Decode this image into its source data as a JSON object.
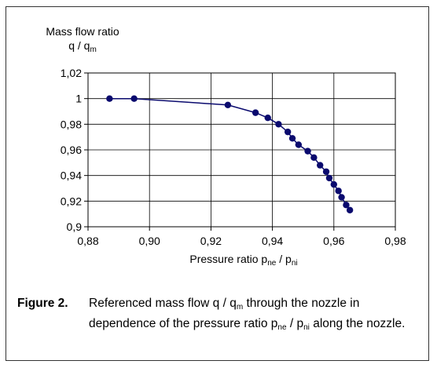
{
  "chart_data": {
    "type": "scatter",
    "ylabel_line1": "Mass flow ratio",
    "ylabel_line2_base": "q / q",
    "ylabel_line2_sub": "m",
    "xlabel_base": "Pressure ratio p",
    "xlabel_sub1": "ne",
    "xlabel_mid": " / p",
    "xlabel_sub2": "ni",
    "xlim": [
      0.88,
      0.98
    ],
    "ylim": [
      0.9,
      1.02
    ],
    "x_ticks": [
      "0,88",
      "0,90",
      "0,92",
      "0,94",
      "0,96",
      "0,98"
    ],
    "x_tick_values": [
      0.88,
      0.9,
      0.92,
      0.94,
      0.96,
      0.98
    ],
    "y_ticks": [
      "0,9",
      "0,92",
      "0,94",
      "0,96",
      "0,98",
      "1",
      "1,02"
    ],
    "y_tick_values": [
      0.9,
      0.92,
      0.94,
      0.96,
      0.98,
      1.0,
      1.02
    ],
    "grid": true,
    "series_color": "#0a0a6e",
    "x": [
      0.887,
      0.895,
      0.9255,
      0.9345,
      0.9385,
      0.942,
      0.945,
      0.9465,
      0.9485,
      0.9515,
      0.9535,
      0.9555,
      0.9575,
      0.9585,
      0.96,
      0.9615,
      0.9625,
      0.964,
      0.9652
    ],
    "y": [
      1.0,
      1.0,
      0.995,
      0.989,
      0.985,
      0.98,
      0.974,
      0.969,
      0.964,
      0.959,
      0.954,
      0.948,
      0.943,
      0.938,
      0.933,
      0.928,
      0.923,
      0.917,
      0.913
    ]
  },
  "caption": {
    "label": "Figure 2.",
    "text_a": "Referenced mass flow q / q",
    "text_a_sub": "m",
    "text_b": " through the nozzle in dependence of the pressure ratio p",
    "text_b_sub1": "ne",
    "text_c": " / p",
    "text_c_sub2": "ni",
    "text_d": " along the nozzle."
  }
}
